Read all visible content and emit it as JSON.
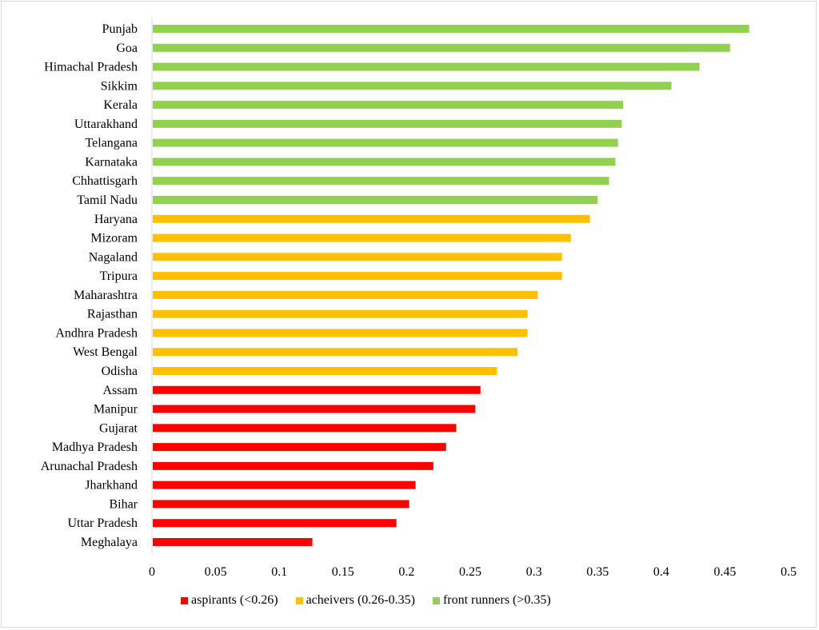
{
  "chart_data": {
    "type": "bar",
    "orientation": "horizontal",
    "categories": [
      "Punjab",
      "Goa",
      "Himachal Pradesh",
      "Sikkim",
      "Kerala",
      "Uttarakhand",
      "Telangana",
      "Karnataka",
      "Chhattisgarh",
      "Tamil Nadu",
      "Haryana",
      "Mizoram",
      "Nagaland",
      "Tripura",
      "Maharashtra",
      "Rajasthan",
      "Andhra Pradesh",
      "West Bengal",
      "Odisha",
      "Assam",
      "Manipur",
      "Gujarat",
      "Madhya Pradesh",
      "Arunachal Pradesh",
      "Jharkhand",
      "Bihar",
      "Uttar Pradesh",
      "Meghalaya"
    ],
    "values": [
      0.469,
      0.454,
      0.43,
      0.408,
      0.37,
      0.369,
      0.366,
      0.364,
      0.359,
      0.35,
      0.344,
      0.329,
      0.322,
      0.322,
      0.303,
      0.295,
      0.295,
      0.287,
      0.271,
      0.258,
      0.254,
      0.239,
      0.231,
      0.221,
      0.207,
      0.202,
      0.192,
      0.126
    ],
    "groups": [
      2,
      2,
      2,
      2,
      2,
      2,
      2,
      2,
      2,
      2,
      1,
      1,
      1,
      1,
      1,
      1,
      1,
      1,
      1,
      0,
      0,
      0,
      0,
      0,
      0,
      0,
      0,
      0
    ],
    "legend": [
      {
        "name": "aspirants (<0.26)",
        "color": "#ff0000"
      },
      {
        "name": "acheivers (0.26-0.35)",
        "color": "#ffc000"
      },
      {
        "name": "front runners (>0.35)",
        "color": "#92d050"
      }
    ],
    "xlim": [
      0,
      0.5
    ],
    "xticks": [
      "0",
      "0.05",
      "0.1",
      "0.15",
      "0.2",
      "0.25",
      "0.3",
      "0.35",
      "0.4",
      "0.45",
      "0.5"
    ],
    "grid": false,
    "legend_position": "bottom",
    "title": "",
    "xlabel": "",
    "ylabel": ""
  }
}
